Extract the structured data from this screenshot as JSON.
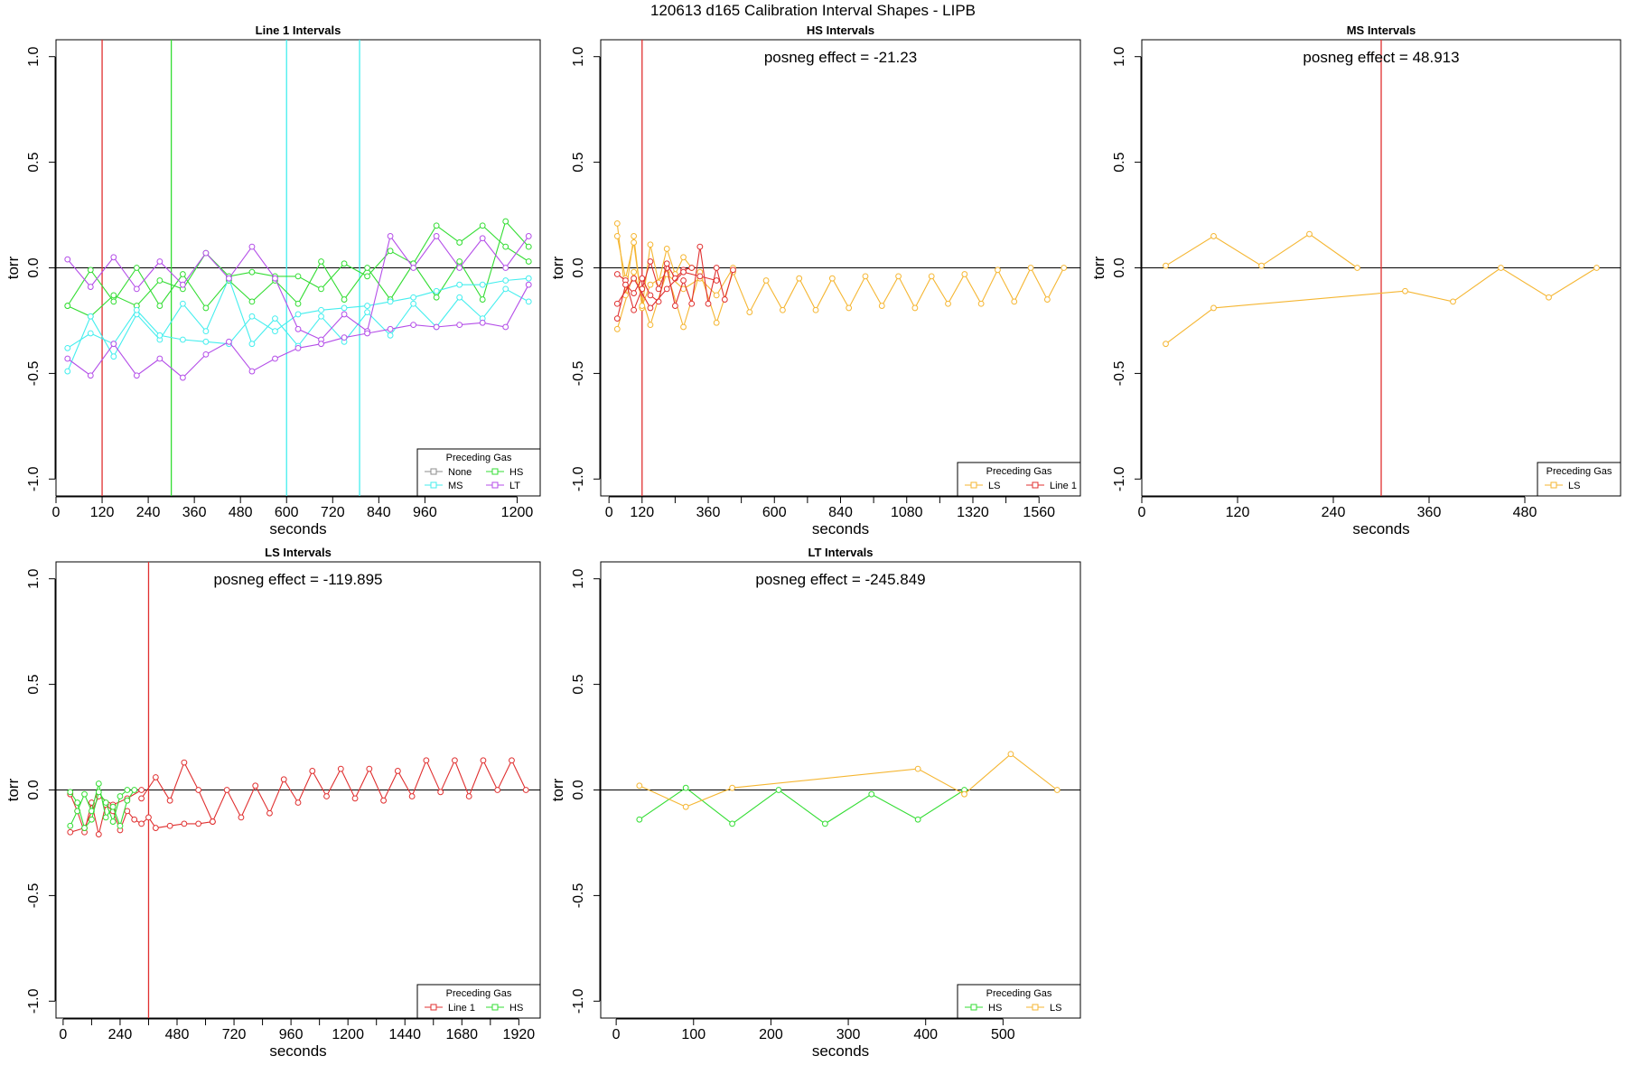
{
  "figure_title": "120613   d165   Calibration Interval Shapes - LIPB",
  "colors": {
    "None": "#8c8c8c",
    "HS": "#33dd33",
    "MS": "#44eeee",
    "LT": "#b44ee8",
    "LS": "#f5b632",
    "Line 1": "#e03030",
    "axis": "#000000"
  },
  "chart_data": [
    {
      "type": "line",
      "title": "Line 1 Intervals",
      "xlabel": "seconds",
      "ylabel": "torr",
      "xlim": [
        0,
        1260
      ],
      "ylim": [
        -1.08,
        1.08
      ],
      "xticks": [
        0,
        120,
        240,
        360,
        480,
        600,
        720,
        840,
        960,
        1200
      ],
      "yticks": [
        -1.0,
        -0.5,
        0.0,
        0.5,
        1.0
      ],
      "ytick_labels": [
        "-1.0",
        "-0.5",
        "0.0",
        "0.5",
        "1.0"
      ],
      "annotation": "",
      "legend_title": "Preceding Gas",
      "legend": [
        "None",
        "HS",
        "MS",
        "LT"
      ],
      "legend_cols": 2,
      "vlines": [
        {
          "x": 120,
          "gas": "Line 1"
        },
        {
          "x": 300,
          "gas": "HS"
        },
        {
          "x": 600,
          "gas": "MS"
        },
        {
          "x": 790,
          "gas": "MS"
        }
      ],
      "series": [
        {
          "gas": "HS",
          "x": [
            30,
            90,
            150,
            210,
            270,
            330,
            390,
            450,
            510,
            570,
            630,
            690,
            750,
            810,
            870,
            930,
            990,
            1050,
            1110,
            1170,
            1230
          ],
          "y": [
            -0.18,
            -0.01,
            -0.16,
            0.0,
            -0.18,
            -0.03,
            -0.19,
            -0.06,
            -0.16,
            -0.06,
            -0.17,
            0.03,
            -0.15,
            0.0,
            -0.15,
            0.02,
            -0.14,
            0.03,
            -0.15,
            0.22,
            0.1
          ]
        },
        {
          "gas": "HS",
          "x": [
            30,
            90,
            150,
            210,
            270,
            330,
            390,
            450,
            510,
            570,
            630,
            690,
            750,
            810,
            870,
            930,
            990,
            1050,
            1110,
            1170,
            1230
          ],
          "y": [
            -0.18,
            -0.23,
            -0.13,
            -0.18,
            -0.06,
            -0.1,
            0.07,
            -0.04,
            -0.02,
            -0.04,
            -0.04,
            -0.1,
            0.02,
            -0.04,
            0.08,
            0.02,
            0.2,
            0.12,
            0.2,
            0.1,
            0.03
          ]
        },
        {
          "gas": "MS",
          "x": [
            30,
            90,
            150,
            210,
            270,
            330,
            390,
            450,
            510,
            570,
            630,
            690,
            750,
            810,
            870,
            930,
            990,
            1050,
            1110,
            1170,
            1230
          ],
          "y": [
            -0.49,
            -0.23,
            -0.42,
            -0.22,
            -0.34,
            -0.17,
            -0.3,
            -0.05,
            -0.36,
            -0.24,
            -0.37,
            -0.23,
            -0.35,
            -0.21,
            -0.32,
            -0.17,
            -0.28,
            -0.14,
            -0.24,
            -0.1,
            -0.16
          ]
        },
        {
          "gas": "MS",
          "x": [
            30,
            90,
            150,
            210,
            270,
            330,
            390,
            450,
            510,
            570,
            630,
            690,
            750,
            810,
            870,
            930,
            990,
            1050,
            1110,
            1170,
            1230
          ],
          "y": [
            -0.38,
            -0.31,
            -0.36,
            -0.2,
            -0.32,
            -0.34,
            -0.35,
            -0.36,
            -0.23,
            -0.3,
            -0.22,
            -0.2,
            -0.19,
            -0.18,
            -0.16,
            -0.14,
            -0.11,
            -0.08,
            -0.08,
            -0.06,
            -0.05
          ]
        },
        {
          "gas": "LT",
          "x": [
            30,
            90,
            150,
            210,
            270,
            330,
            390,
            450,
            510,
            570,
            630,
            690,
            750,
            810,
            870,
            930,
            990,
            1050,
            1110,
            1170,
            1230
          ],
          "y": [
            0.04,
            -0.09,
            0.05,
            -0.1,
            0.03,
            -0.08,
            0.07,
            -0.05,
            0.1,
            -0.05,
            -0.29,
            -0.34,
            -0.22,
            -0.3,
            0.15,
            0.0,
            0.15,
            0.0,
            0.14,
            0.0,
            0.15
          ]
        },
        {
          "gas": "LT",
          "x": [
            30,
            90,
            150,
            210,
            270,
            330,
            390,
            450,
            510,
            570,
            630,
            690,
            750,
            810,
            870,
            930,
            990,
            1050,
            1110,
            1170,
            1230
          ],
          "y": [
            -0.43,
            -0.51,
            -0.36,
            -0.51,
            -0.43,
            -0.52,
            -0.41,
            -0.35,
            -0.49,
            -0.43,
            -0.38,
            -0.36,
            -0.33,
            -0.31,
            -0.29,
            -0.27,
            -0.28,
            -0.27,
            -0.26,
            -0.28,
            -0.08
          ]
        }
      ]
    },
    {
      "type": "line",
      "title": "HS Intervals",
      "xlabel": "seconds",
      "ylabel": "torr",
      "xlim": [
        -30,
        1710
      ],
      "ylim": [
        -1.08,
        1.08
      ],
      "xticks": [
        0,
        120,
        360,
        600,
        840,
        1080,
        1320,
        1560
      ],
      "minor_xticks": [
        240,
        480,
        720,
        960,
        1200,
        1440
      ],
      "yticks": [
        -1.0,
        -0.5,
        0.0,
        0.5,
        1.0
      ],
      "ytick_labels": [
        "-1.0",
        "-0.5",
        "0.0",
        "0.5",
        "1.0"
      ],
      "annotation": "posneg effect = -21.23",
      "legend_title": "Preceding Gas",
      "legend": [
        "LS",
        "Line 1"
      ],
      "legend_cols": 2,
      "vlines": [
        {
          "x": 120,
          "gas": "Line 1"
        }
      ],
      "series": [
        {
          "gas": "LS",
          "x": [
            30,
            90,
            150,
            210,
            270,
            330,
            390,
            450,
            510,
            570,
            630,
            690,
            750,
            810,
            870,
            930,
            990,
            1050,
            1110,
            1170,
            1230,
            1290,
            1350,
            1410,
            1470,
            1530,
            1590,
            1650
          ],
          "y": [
            -0.29,
            -0.02,
            -0.27,
            -0.02,
            -0.28,
            -0.02,
            -0.26,
            -0.02,
            -0.21,
            -0.06,
            -0.2,
            -0.05,
            -0.2,
            -0.05,
            -0.19,
            -0.04,
            -0.18,
            -0.04,
            -0.19,
            -0.04,
            -0.17,
            -0.03,
            -0.17,
            -0.01,
            -0.16,
            0.0,
            -0.15,
            0.0
          ]
        },
        {
          "gas": "LS",
          "x": [
            30,
            60,
            90,
            120,
            150,
            180,
            210,
            240,
            270,
            300
          ],
          "y": [
            0.21,
            -0.13,
            0.15,
            -0.19,
            0.11,
            -0.07,
            0.09,
            -0.03,
            0.05,
            0.0
          ]
        },
        {
          "gas": "LS",
          "x": [
            30,
            60,
            90,
            120,
            150,
            210,
            270,
            330,
            390,
            450
          ],
          "y": [
            0.15,
            -0.05,
            0.12,
            -0.18,
            -0.08,
            -0.03,
            -0.1,
            -0.05,
            -0.13,
            0.0
          ]
        },
        {
          "gas": "Line 1",
          "x": [
            30,
            60,
            90,
            120,
            150,
            180,
            210,
            240,
            270,
            300,
            330,
            360,
            390,
            420,
            450
          ],
          "y": [
            -0.03,
            -0.06,
            -0.2,
            -0.1,
            0.03,
            -0.1,
            0.0,
            -0.18,
            -0.06,
            -0.17,
            0.1,
            -0.17,
            0.0,
            -0.15,
            -0.01
          ]
        },
        {
          "gas": "Line 1",
          "x": [
            30,
            60,
            90,
            120,
            150,
            180,
            210,
            240,
            270,
            300
          ],
          "y": [
            -0.24,
            -0.08,
            -0.12,
            -0.05,
            -0.13,
            -0.16,
            0.02,
            -0.05,
            -0.01,
            0.0
          ]
        },
        {
          "gas": "Line 1",
          "x": [
            30,
            90,
            150,
            210,
            270,
            330,
            390
          ],
          "y": [
            -0.17,
            -0.05,
            -0.19,
            -0.1,
            -0.02,
            -0.04,
            -0.06
          ]
        }
      ]
    },
    {
      "type": "line",
      "title": "MS Intervals",
      "xlabel": "seconds",
      "ylabel": "torr",
      "xlim": [
        0,
        600
      ],
      "ylim": [
        -1.08,
        1.08
      ],
      "xticks": [
        0,
        120,
        240,
        360,
        480
      ],
      "yticks": [
        -1.0,
        -0.5,
        0.0,
        0.5,
        1.0
      ],
      "ytick_labels": [
        "-1.0",
        "-0.5",
        "0.0",
        "0.5",
        "1.0"
      ],
      "annotation": "posneg effect = 48.913",
      "legend_title": "Preceding Gas",
      "legend": [
        "LS"
      ],
      "legend_cols": 1,
      "vlines": [
        {
          "x": 300,
          "gas": "Line 1"
        }
      ],
      "series": [
        {
          "gas": "LS",
          "x": [
            30,
            90,
            150,
            210,
            270
          ],
          "y": [
            0.01,
            0.15,
            0.01,
            0.16,
            0.0
          ]
        },
        {
          "gas": "LS",
          "x": [
            30,
            90,
            330,
            390,
            450,
            510,
            570
          ],
          "y": [
            -0.36,
            -0.19,
            -0.11,
            -0.16,
            0.0,
            -0.14,
            0.0
          ]
        }
      ]
    },
    {
      "type": "line",
      "title": "LS Intervals",
      "xlabel": "seconds",
      "ylabel": "torr",
      "xlim": [
        -30,
        2010
      ],
      "ylim": [
        -1.08,
        1.08
      ],
      "xticks": [
        0,
        240,
        480,
        720,
        960,
        1200,
        1440,
        1680,
        1920
      ],
      "minor_xticks": [
        120,
        360,
        600,
        840,
        1080,
        1320,
        1560,
        1800
      ],
      "yticks": [
        -1.0,
        -0.5,
        0.0,
        0.5,
        1.0
      ],
      "ytick_labels": [
        "-1.0",
        "-0.5",
        "0.0",
        "0.5",
        "1.0"
      ],
      "annotation": "posneg effect = -119.895",
      "legend_title": "Preceding Gas",
      "legend": [
        "Line 1",
        "HS"
      ],
      "legend_cols": 2,
      "vlines": [
        {
          "x": 360,
          "gas": "Line 1"
        }
      ],
      "series": [
        {
          "gas": "Line 1",
          "x": [
            330,
            390,
            450,
            510,
            570,
            630,
            690,
            750,
            810,
            870,
            930,
            990,
            1050,
            1110,
            1170,
            1230,
            1290,
            1350,
            1410,
            1470,
            1530,
            1590,
            1650,
            1710,
            1770,
            1830,
            1890,
            1950
          ],
          "y": [
            -0.04,
            0.06,
            -0.05,
            0.13,
            0.0,
            -0.15,
            0.0,
            -0.13,
            0.02,
            -0.11,
            0.05,
            -0.06,
            0.09,
            -0.03,
            0.1,
            -0.04,
            0.1,
            -0.05,
            0.09,
            -0.03,
            0.14,
            -0.01,
            0.14,
            -0.03,
            0.14,
            0.0,
            0.14,
            0.0
          ]
        },
        {
          "gas": "Line 1",
          "x": [
            30,
            60,
            90,
            120,
            150,
            180,
            210,
            240,
            270,
            300,
            330,
            360,
            390,
            450,
            510,
            570,
            630
          ],
          "y": [
            -0.02,
            -0.1,
            -0.2,
            -0.06,
            -0.21,
            -0.07,
            -0.1,
            -0.19,
            -0.1,
            -0.14,
            -0.16,
            -0.13,
            -0.18,
            -0.17,
            -0.16,
            -0.16,
            -0.15
          ]
        },
        {
          "gas": "Line 1",
          "x": [
            30,
            90,
            150,
            210,
            270,
            330
          ],
          "y": [
            -0.2,
            -0.18,
            -0.03,
            -0.07,
            -0.04,
            0.0
          ]
        },
        {
          "gas": "HS",
          "x": [
            30,
            60,
            90,
            120,
            150,
            180,
            210,
            240,
            270,
            300
          ],
          "y": [
            -0.17,
            -0.1,
            -0.02,
            -0.1,
            0.03,
            -0.13,
            -0.08,
            -0.17,
            -0.05,
            0.0
          ]
        },
        {
          "gas": "HS",
          "x": [
            30,
            60,
            90,
            120,
            150,
            180,
            210,
            240,
            270
          ],
          "y": [
            -0.01,
            -0.06,
            -0.18,
            -0.14,
            -0.01,
            -0.06,
            -0.15,
            -0.03,
            0.0
          ]
        }
      ]
    },
    {
      "type": "line",
      "title": "LT Intervals",
      "xlabel": "seconds",
      "ylabel": "torr",
      "xlim": [
        -20,
        600
      ],
      "ylim": [
        -1.08,
        1.08
      ],
      "xticks": [
        0,
        100,
        200,
        300,
        400,
        500
      ],
      "yticks": [
        -1.0,
        -0.5,
        0.0,
        0.5,
        1.0
      ],
      "ytick_labels": [
        "-1.0",
        "-0.5",
        "0.0",
        "0.5",
        "1.0"
      ],
      "annotation": "posneg effect = -245.849",
      "legend_title": "Preceding Gas",
      "legend": [
        "HS",
        "LS"
      ],
      "legend_cols": 2,
      "vlines": [],
      "series": [
        {
          "gas": "HS",
          "x": [
            30,
            90,
            150,
            210,
            270,
            330,
            390,
            450
          ],
          "y": [
            -0.14,
            0.01,
            -0.16,
            0.0,
            -0.16,
            -0.02,
            -0.14,
            0.0
          ]
        },
        {
          "gas": "LS",
          "x": [
            30,
            90,
            150,
            390,
            450,
            510,
            570
          ],
          "y": [
            0.02,
            -0.08,
            0.01,
            0.1,
            -0.02,
            0.17,
            0.0
          ]
        }
      ]
    }
  ]
}
